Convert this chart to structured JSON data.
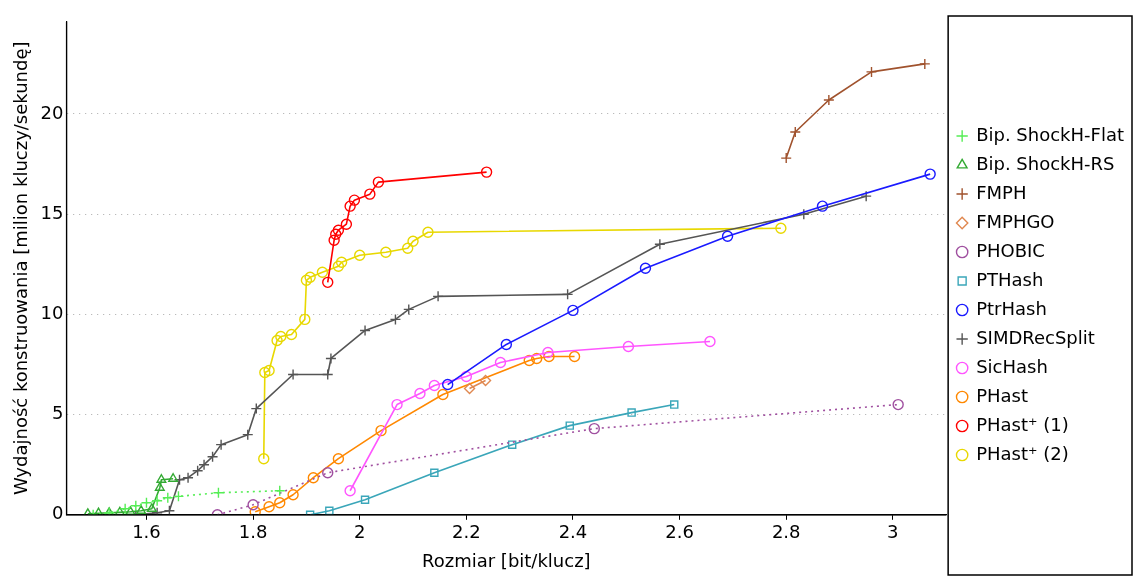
{
  "chart_data": {
    "type": "line",
    "xlabel": "Rozmiar [bit/klucz]",
    "ylabel": "Wydajność konstruowania [milion kluczy/sekundę]",
    "xlim": [
      1.45,
      3.1
    ],
    "xticks": [
      {
        "value": 1.6,
        "label": "1.6"
      },
      {
        "value": 1.8,
        "label": "1.8"
      },
      2,
      {
        "value": 2.2,
        "label": "2.2"
      },
      {
        "value": 2.4,
        "label": "2.4"
      },
      {
        "value": 2.6,
        "label": "2.6"
      },
      {
        "value": 2.8,
        "label": "2.8"
      },
      3
    ],
    "ylim": [
      0,
      24.6
    ],
    "yticks": [
      0,
      5,
      10,
      15,
      20
    ],
    "grid": "y",
    "legend": "right",
    "series": [
      {
        "name": "Bip. ShockH-Flat",
        "color": "#55ee55",
        "marker": "cross",
        "line_style": "dotted",
        "x": [
          1.5,
          1.53,
          1.56,
          1.58,
          1.6,
          1.62,
          1.64,
          1.66,
          1.735,
          1.85
        ],
        "values": [
          0,
          0.1,
          0.3,
          0.45,
          0.6,
          0.7,
          0.85,
          0.92,
          1.1,
          1.2
        ]
      },
      {
        "name": "Bip. ShockH-RS",
        "color": "#33aa33",
        "marker": "triangle",
        "line_style": "solid",
        "x": [
          1.49,
          1.51,
          1.53,
          1.55,
          1.57,
          1.59,
          1.61,
          1.625,
          1.628,
          1.65
        ],
        "values": [
          0.05,
          0.08,
          0.1,
          0.12,
          0.15,
          0.2,
          0.3,
          1.35,
          1.75,
          1.8
        ]
      },
      {
        "name": "FMPH",
        "color": "#a0522d",
        "marker": "cross",
        "line_style": "solid",
        "x": [
          2.8,
          2.817,
          2.88,
          2.96,
          3.06
        ],
        "values": [
          17.8,
          19.1,
          20.7,
          22.1,
          22.5
        ]
      },
      {
        "name": "FMPHGO",
        "color": "#e08850",
        "marker": "diamond",
        "line_style": "solid",
        "x": [
          2.206,
          2.236
        ],
        "values": [
          6.3,
          6.7
        ]
      },
      {
        "name": "PHOBIC",
        "color": "#a050a0",
        "marker": "circle",
        "line_style": "dotted",
        "x": [
          1.733,
          1.8,
          1.94,
          2.44,
          3.01
        ],
        "values": [
          0,
          0.5,
          2.1,
          4.3,
          5.5
        ]
      },
      {
        "name": "PTHash",
        "color": "#3aa6b9",
        "marker": "square",
        "line_style": "solid",
        "x": [
          1.907,
          1.943,
          2.01,
          2.14,
          2.286,
          2.394,
          2.51,
          2.59
        ],
        "values": [
          0,
          0.2,
          0.75,
          2.1,
          3.5,
          4.45,
          5.1,
          5.5
        ]
      },
      {
        "name": "PtrHash",
        "color": "#1a1aff",
        "marker": "circle",
        "line_style": "solid",
        "x": [
          2.165,
          2.275,
          2.4,
          2.536,
          2.69,
          2.868,
          3.07
        ],
        "values": [
          6.5,
          8.5,
          10.2,
          12.3,
          13.9,
          15.4,
          17
        ]
      },
      {
        "name": "SIMDRecSplit",
        "color": "#555555",
        "marker": "cross",
        "line_style": "solid",
        "x": [
          1.58,
          1.62,
          1.643,
          1.662,
          1.678,
          1.696,
          1.708,
          1.724,
          1.74,
          1.79,
          1.806,
          1.875,
          1.94,
          1.946,
          2.01,
          2.067,
          2.092,
          2.147,
          2.39,
          2.563,
          2.833,
          2.95
        ],
        "values": [
          0,
          0.1,
          0.2,
          1.75,
          1.85,
          2.2,
          2.5,
          2.9,
          3.5,
          4,
          5.3,
          7,
          7,
          7.8,
          9.2,
          9.75,
          10.25,
          10.9,
          11,
          13.5,
          15,
          15.9
        ]
      },
      {
        "name": "SicHash",
        "color": "#ff55ff",
        "marker": "circle",
        "line_style": "solid",
        "x": [
          1.982,
          2.07,
          2.113,
          2.14,
          2.2,
          2.264,
          2.353,
          2.504,
          2.657
        ],
        "values": [
          1.2,
          5.5,
          6.05,
          6.45,
          6.9,
          7.6,
          8.1,
          8.4,
          8.65
        ]
      },
      {
        "name": "PHast",
        "color": "#ff8800",
        "marker": "circle",
        "line_style": "solid",
        "x": [
          1.804,
          1.83,
          1.85,
          1.875,
          1.913,
          1.96,
          2.04,
          2.156,
          2.318,
          2.332,
          2.355,
          2.403
        ],
        "values": [
          0.15,
          0.4,
          0.6,
          1,
          1.85,
          2.8,
          4.2,
          6,
          7.7,
          7.8,
          7.9,
          7.9
        ]
      },
      {
        "name": "PHast⁺ (1)",
        "color": "#ff0000",
        "marker": "circle",
        "line_style": "solid",
        "x": [
          1.94,
          1.952,
          1.955,
          1.96,
          1.975,
          1.982,
          1.99,
          2.019,
          2.035,
          2.238
        ],
        "values": [
          11.6,
          13.7,
          14,
          14.2,
          14.5,
          15.4,
          15.7,
          16,
          16.6,
          17.1
        ]
      },
      {
        "name": "PHast⁺ (2)",
        "color": "#e8d800",
        "marker": "circle",
        "line_style": "solid",
        "x": [
          1.82,
          1.822,
          1.83,
          1.845,
          1.852,
          1.872,
          1.897,
          1.9,
          1.907,
          1.93,
          1.96,
          1.966,
          2,
          2.049,
          2.09,
          2.1,
          2.128,
          2.79
        ],
        "values": [
          2.8,
          7.1,
          7.2,
          8.7,
          8.9,
          9,
          9.75,
          11.7,
          11.85,
          12.1,
          12.4,
          12.6,
          12.95,
          13.1,
          13.3,
          13.65,
          14.1,
          14.3
        ]
      }
    ]
  }
}
